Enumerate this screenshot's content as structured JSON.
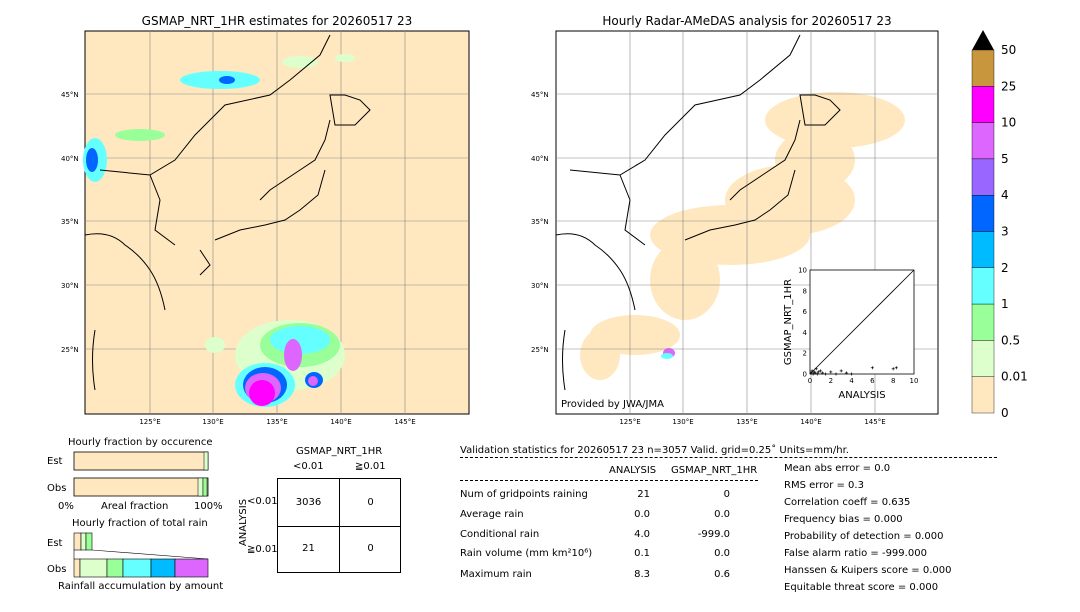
{
  "left_map": {
    "title": "GSMAP_NRT_1HR estimates for 20260517 23",
    "lat_labels": [
      "45°N",
      "40°N",
      "35°N",
      "30°N",
      "25°N"
    ],
    "lon_labels": [
      "125°E",
      "130°E",
      "135°E",
      "140°E",
      "145°E"
    ]
  },
  "right_map": {
    "title": "Hourly Radar-AMeDAS analysis for 20260517 23",
    "lat_labels": [
      "45°N",
      "40°N",
      "35°N",
      "30°N",
      "25°N"
    ],
    "lon_labels": [
      "125°E",
      "130°E",
      "135°E",
      "140°E",
      "145°E"
    ],
    "credit": "Provided by JWA/JMA"
  },
  "colorbar": {
    "labels": [
      "50",
      "25",
      "10",
      "5",
      "4",
      "3",
      "2",
      "1",
      "0.5",
      "0.01",
      "0"
    ],
    "colors": [
      "#c8963c",
      "#ff00ff",
      "#dd66ff",
      "#9966ff",
      "#0066ff",
      "#00bbff",
      "#66ffff",
      "#99ff99",
      "#ddffcc",
      "#ffe8bf"
    ]
  },
  "chart_data": [
    {
      "type": "scatter",
      "title": "",
      "xlabel": "ANALYSIS",
      "ylabel": "GSMAP_NRT_1HR",
      "xlim": [
        0,
        10
      ],
      "ylim": [
        0,
        10
      ],
      "xticks": [
        "0",
        "2",
        "4",
        "6",
        "8",
        "10"
      ],
      "yticks": [
        "0",
        "2",
        "4",
        "6",
        "8",
        "10"
      ],
      "points": [
        [
          0.1,
          0.1
        ],
        [
          0.2,
          0.3
        ],
        [
          0.3,
          0.0
        ],
        [
          0.4,
          0.2
        ],
        [
          0.5,
          0.1
        ],
        [
          0.6,
          0.5
        ],
        [
          0.7,
          0.0
        ],
        [
          0.8,
          0.2
        ],
        [
          1.0,
          0.3
        ],
        [
          1.2,
          0.1
        ],
        [
          1.5,
          0.0
        ],
        [
          2.0,
          0.2
        ],
        [
          2.5,
          0.0
        ],
        [
          3.0,
          0.3
        ],
        [
          3.5,
          0.1
        ],
        [
          4.0,
          0.0
        ],
        [
          6.0,
          0.6
        ],
        [
          8.0,
          0.5
        ],
        [
          8.3,
          0.6
        ]
      ]
    },
    {
      "type": "bar",
      "title": "Hourly fraction by occurence",
      "categories": [
        "Est",
        "Obs"
      ],
      "xlabel": "Areal fraction",
      "xticks": [
        "0%",
        "100%"
      ]
    },
    {
      "type": "bar",
      "title": "Hourly fraction of total rain",
      "categories": [
        "Est",
        "Obs"
      ],
      "xlabel": "Rainfall accumulation by amount"
    }
  ],
  "contingency": {
    "col_title": "GSMAP_NRT_1HR",
    "col_labels": [
      "<0.01",
      "≧0.01"
    ],
    "row_title": "ANALYSIS",
    "row_labels": [
      "<0.01",
      "≧0.01"
    ],
    "cells": [
      [
        "3036",
        "0"
      ],
      [
        "21",
        "0"
      ]
    ]
  },
  "validation": {
    "header": "Validation statistics for 20260517 23  n=3057 Valid. grid=0.25˚ Units=mm/hr.",
    "col_analysis": "ANALYSIS",
    "col_gsmap": "GSMAP_NRT_1HR",
    "rows": [
      {
        "label": "Num of gridpoints raining",
        "analysis": "21",
        "gsmap": "0"
      },
      {
        "label": "Average rain",
        "analysis": "0.0",
        "gsmap": "0.0"
      },
      {
        "label": "Conditional rain",
        "analysis": "4.0",
        "gsmap": "-999.0"
      },
      {
        "label": "Rain volume (mm km²10⁶)",
        "analysis": "0.1",
        "gsmap": "0.0"
      },
      {
        "label": "Maximum rain",
        "analysis": "8.3",
        "gsmap": "0.6"
      }
    ],
    "scores": [
      "Mean abs error =    0.0",
      "RMS error =    0.3",
      "Correlation coeff =  0.635",
      "Frequency bias =  0.000",
      "Probability of detection =  0.000",
      "False alarm ratio = -999.000",
      "Hanssen & Kuipers score =  0.000",
      "Equitable threat score =  0.000"
    ]
  }
}
